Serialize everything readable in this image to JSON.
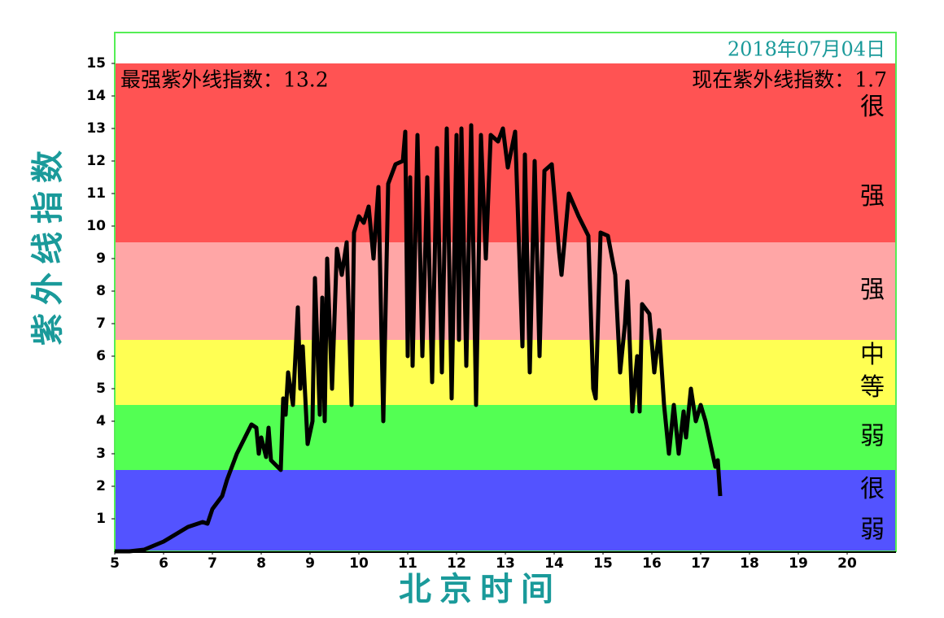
{
  "chart_data": {
    "type": "line",
    "date": "2018年07月04日",
    "max_text": "最强紫外线指数：13.2",
    "current_text": "现在紫外线指数：1.7",
    "ylabel": "紫外线指数",
    "xlabel": "北京时间",
    "xlim": [
      5,
      21
    ],
    "ylim": [
      0,
      16
    ],
    "xticks": [
      5,
      6,
      7,
      8,
      9,
      10,
      11,
      12,
      13,
      14,
      15,
      16,
      17,
      18,
      19,
      20
    ],
    "yticks": [
      1,
      2,
      3,
      4,
      5,
      6,
      7,
      8,
      9,
      10,
      11,
      12,
      13,
      14,
      15
    ],
    "bands": [
      {
        "from": 0,
        "to": 2.5,
        "color": "#5353ff",
        "label": "很弱"
      },
      {
        "from": 2.5,
        "to": 4.5,
        "color": "#53ff53",
        "label": "弱"
      },
      {
        "from": 4.5,
        "to": 6.5,
        "color": "#ffff53",
        "label": "中等"
      },
      {
        "from": 6.5,
        "to": 9.5,
        "color": "#ffa6a6",
        "label": "强"
      },
      {
        "from": 9.5,
        "to": 15,
        "color": "#ff5353",
        "label": "很强"
      }
    ],
    "color": "#000000",
    "x": [
      5.0,
      5.3,
      5.6,
      6.0,
      6.5,
      6.8,
      6.9,
      7.0,
      7.2,
      7.3,
      7.5,
      7.8,
      7.9,
      7.95,
      8.0,
      8.1,
      8.15,
      8.2,
      8.4,
      8.45,
      8.5,
      8.55,
      8.65,
      8.75,
      8.8,
      8.85,
      8.95,
      9.05,
      9.1,
      9.2,
      9.25,
      9.3,
      9.35,
      9.45,
      9.55,
      9.65,
      9.75,
      9.85,
      9.9,
      10.0,
      10.1,
      10.2,
      10.3,
      10.4,
      10.5,
      10.6,
      10.75,
      10.9,
      10.95,
      11.0,
      11.05,
      11.1,
      11.2,
      11.3,
      11.4,
      11.5,
      11.6,
      11.7,
      11.8,
      11.9,
      12.0,
      12.05,
      12.1,
      12.2,
      12.3,
      12.4,
      12.5,
      12.6,
      12.7,
      12.85,
      12.95,
      13.05,
      13.2,
      13.35,
      13.4,
      13.5,
      13.6,
      13.7,
      13.8,
      13.95,
      14.1,
      14.15,
      14.3,
      14.5,
      14.7,
      14.8,
      14.85,
      14.95,
      15.1,
      15.25,
      15.35,
      15.45,
      15.5,
      15.6,
      15.7,
      15.75,
      15.8,
      15.95,
      16.05,
      16.15,
      16.25,
      16.35,
      16.45,
      16.55,
      16.65,
      16.7,
      16.8,
      16.9,
      17.0,
      17.1,
      17.2,
      17.3,
      17.35,
      17.4
    ],
    "values": [
      0.0,
      0.0,
      0.05,
      0.3,
      0.75,
      0.9,
      0.85,
      1.3,
      1.7,
      2.2,
      3.0,
      3.9,
      3.8,
      3.0,
      3.5,
      2.9,
      3.8,
      2.8,
      2.5,
      4.7,
      4.2,
      5.5,
      4.5,
      7.5,
      5.0,
      6.3,
      3.3,
      4.0,
      8.4,
      4.2,
      7.8,
      4.0,
      9.0,
      5.0,
      9.3,
      8.5,
      9.5,
      4.5,
      9.8,
      10.3,
      10.1,
      10.6,
      9.0,
      11.2,
      4.0,
      11.3,
      11.9,
      12.0,
      12.9,
      6.0,
      11.5,
      5.7,
      12.8,
      6.0,
      11.5,
      5.2,
      12.4,
      5.5,
      13.0,
      4.7,
      12.8,
      6.5,
      13.0,
      5.7,
      13.1,
      4.5,
      12.8,
      9.0,
      12.8,
      12.6,
      13.0,
      11.8,
      12.9,
      6.3,
      12.2,
      5.5,
      12.0,
      6.0,
      11.7,
      11.9,
      9.2,
      8.5,
      11.0,
      10.3,
      9.7,
      5.0,
      4.7,
      9.8,
      9.7,
      8.5,
      5.5,
      7.0,
      8.3,
      4.3,
      6.0,
      4.3,
      7.6,
      7.3,
      5.5,
      6.8,
      4.5,
      3.0,
      4.5,
      3.0,
      4.3,
      3.5,
      5.0,
      4.0,
      4.5,
      4.0,
      3.3,
      2.6,
      2.8,
      1.7
    ]
  }
}
